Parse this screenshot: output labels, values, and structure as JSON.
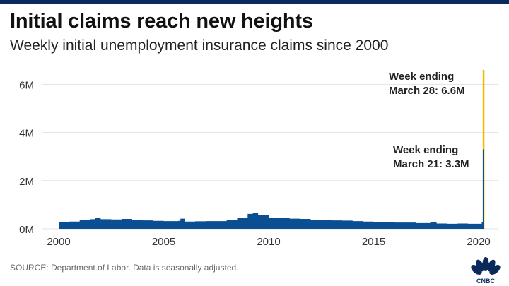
{
  "header": {
    "title": "Initial claims reach new heights",
    "subtitle": "Weekly initial unemployment insurance claims since 2000"
  },
  "footer": {
    "source": "SOURCE: Department of Labor. Data is seasonally adjusted.",
    "logo": "CNBC"
  },
  "colors": {
    "area": "#0a4f91",
    "highlight": "#f5b800",
    "topbar": "#0a2a5c"
  },
  "chart_data": {
    "type": "area",
    "title": "Initial claims reach new heights",
    "subtitle": "Weekly initial unemployment insurance claims since 2000",
    "xlabel": "",
    "ylabel": "",
    "xlim": [
      1999.5,
      2021.3
    ],
    "ylim": [
      0,
      6.8
    ],
    "x_ticks": [
      2000,
      2005,
      2010,
      2015,
      2020
    ],
    "x_tick_labels": [
      "2000",
      "2005",
      "2010",
      "2015",
      "2020"
    ],
    "y_ticks": [
      0,
      2,
      4,
      6
    ],
    "y_tick_labels": [
      "0M",
      "2M",
      "4M",
      "6M"
    ],
    "grid": true,
    "series": [
      {
        "name": "Weekly initial claims (millions)",
        "x": [
          2000.0,
          2000.5,
          2001.0,
          2001.5,
          2001.75,
          2002.0,
          2002.5,
          2003.0,
          2003.5,
          2004.0,
          2004.5,
          2005.0,
          2005.7,
          2005.8,
          2006.0,
          2006.5,
          2007.0,
          2007.5,
          2008.0,
          2008.5,
          2009.0,
          2009.25,
          2009.5,
          2010.0,
          2010.5,
          2011.0,
          2011.5,
          2012.0,
          2012.5,
          2013.0,
          2013.5,
          2014.0,
          2014.5,
          2015.0,
          2015.5,
          2016.0,
          2016.5,
          2017.0,
          2017.5,
          2017.7,
          2018.0,
          2018.5,
          2019.0,
          2019.5,
          2020.0,
          2020.15,
          2020.2
        ],
        "y": [
          0.28,
          0.3,
          0.36,
          0.4,
          0.45,
          0.4,
          0.39,
          0.41,
          0.38,
          0.35,
          0.33,
          0.32,
          0.33,
          0.42,
          0.3,
          0.31,
          0.32,
          0.32,
          0.37,
          0.46,
          0.62,
          0.66,
          0.58,
          0.47,
          0.46,
          0.42,
          0.41,
          0.38,
          0.37,
          0.35,
          0.34,
          0.32,
          0.3,
          0.28,
          0.27,
          0.26,
          0.26,
          0.24,
          0.24,
          0.28,
          0.22,
          0.21,
          0.22,
          0.21,
          0.21,
          0.28,
          3.3
        ]
      }
    ],
    "highlight": {
      "x": 2020.23,
      "y": 6.6
    },
    "annotations": [
      {
        "lines": [
          "Week ending",
          "March 28: 6.6M"
        ],
        "x": 2020.23,
        "y": 6.6
      },
      {
        "lines": [
          "Week ending",
          "March 21: 3.3M"
        ],
        "x": 2020.2,
        "y": 3.3
      }
    ]
  }
}
